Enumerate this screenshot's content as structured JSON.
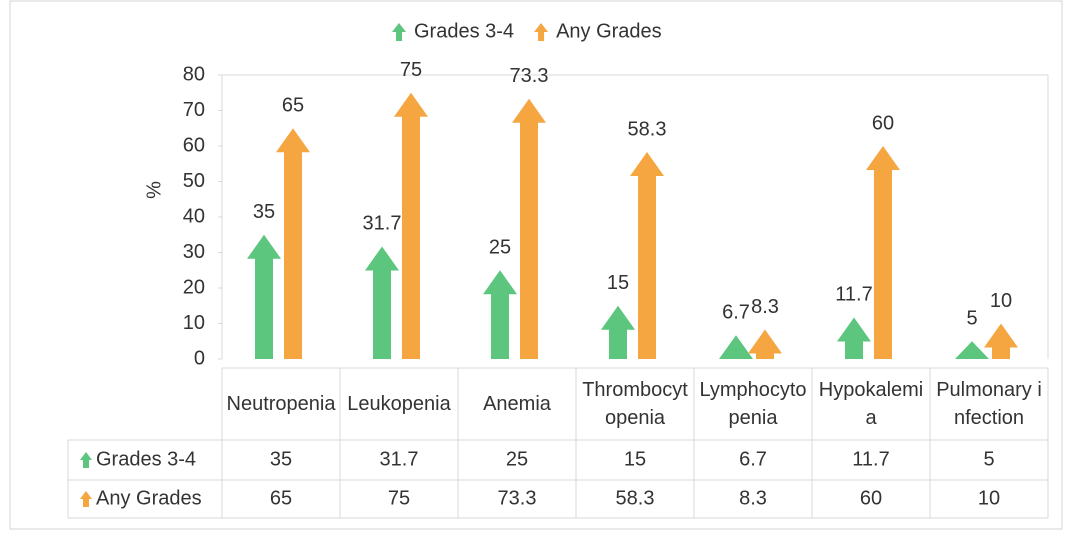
{
  "chart_data": {
    "type": "bar",
    "y_label": "%",
    "categories": [
      "Neutropenia",
      "Leukopenia",
      "Anemia",
      "Thrombocytopenia",
      "Lymphocytopenia",
      "Hypokalemia",
      "Pulmonary infection"
    ],
    "series": [
      {
        "name": "Grades 3-4",
        "color": "#5cc57e",
        "values": [
          35,
          31.7,
          25,
          15,
          6.7,
          11.7,
          5
        ]
      },
      {
        "name": "Any Grades",
        "color": "#f5a640",
        "values": [
          65,
          75,
          73.3,
          58.3,
          8.3,
          60,
          10
        ]
      }
    ],
    "ylim": [
      0,
      80
    ],
    "yticks": [
      0,
      10,
      20,
      30,
      40,
      50,
      60,
      70,
      80
    ],
    "legend": "top",
    "data_table": true
  }
}
